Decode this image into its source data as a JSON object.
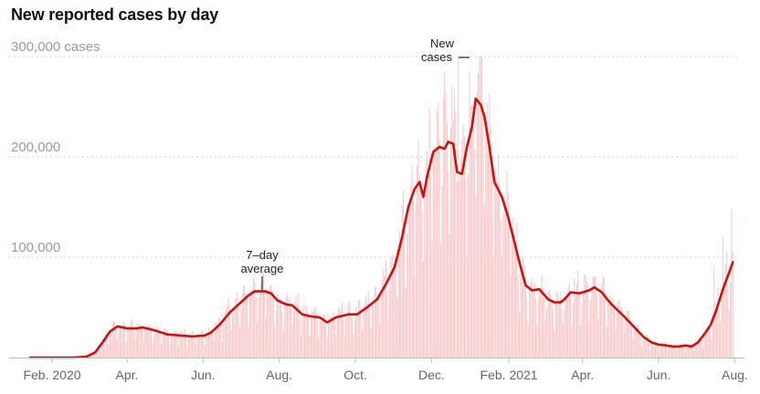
{
  "header": {
    "title": "New reported cases by day"
  },
  "colors": {
    "line": "#cc1111",
    "bar": "#f6c9c9",
    "grid": "#d6d6d6",
    "axis": "#bbbbbb"
  },
  "chart_data": {
    "type": "bar",
    "title": "New reported cases by day",
    "xlabel": "",
    "ylabel": "",
    "x_range_days": [
      0,
      565
    ],
    "ylim": [
      0,
      300000
    ],
    "y_ticks": [
      {
        "value": 300000,
        "label": "300,000 cases"
      },
      {
        "value": 200000,
        "label": "200,000"
      },
      {
        "value": 100000,
        "label": "100,000"
      }
    ],
    "x_ticks": [
      {
        "day": 0,
        "label": "Feb. 2020"
      },
      {
        "day": 60,
        "label": "Apr."
      },
      {
        "day": 121,
        "label": "Jun."
      },
      {
        "day": 182,
        "label": "Aug."
      },
      {
        "day": 243,
        "label": "Oct."
      },
      {
        "day": 304,
        "label": "Dec."
      },
      {
        "day": 366,
        "label": "Feb. 2021"
      },
      {
        "day": 425,
        "label": "Apr."
      },
      {
        "day": 486,
        "label": "Jun."
      },
      {
        "day": 547,
        "label": "Aug."
      }
    ],
    "series": [
      {
        "name": "7-day average",
        "type": "line",
        "points": [
          [
            0,
            0
          ],
          [
            20,
            0
          ],
          [
            35,
            0
          ],
          [
            45,
            800
          ],
          [
            52,
            5000
          ],
          [
            58,
            15000
          ],
          [
            64,
            26000
          ],
          [
            70,
            31000
          ],
          [
            78,
            29000
          ],
          [
            85,
            29000
          ],
          [
            90,
            30000
          ],
          [
            100,
            27000
          ],
          [
            110,
            23000
          ],
          [
            120,
            22000
          ],
          [
            130,
            21000
          ],
          [
            140,
            22000
          ],
          [
            145,
            25000
          ],
          [
            152,
            33000
          ],
          [
            160,
            45000
          ],
          [
            168,
            54000
          ],
          [
            175,
            62000
          ],
          [
            180,
            66000
          ],
          [
            188,
            66000
          ],
          [
            193,
            64000
          ],
          [
            198,
            57000
          ],
          [
            205,
            53000
          ],
          [
            210,
            52000
          ],
          [
            218,
            43000
          ],
          [
            225,
            41000
          ],
          [
            232,
            40000
          ],
          [
            238,
            35000
          ],
          [
            245,
            40000
          ],
          [
            255,
            43000
          ],
          [
            262,
            43000
          ],
          [
            270,
            50000
          ],
          [
            278,
            58000
          ],
          [
            285,
            73000
          ],
          [
            292,
            90000
          ],
          [
            298,
            120000
          ],
          [
            303,
            150000
          ],
          [
            308,
            168000
          ],
          [
            312,
            175000
          ],
          [
            315,
            160000
          ],
          [
            318,
            180000
          ],
          [
            323,
            205000
          ],
          [
            328,
            210000
          ],
          [
            332,
            208000
          ],
          [
            335,
            215000
          ],
          [
            339,
            213000
          ],
          [
            342,
            185000
          ],
          [
            346,
            183000
          ],
          [
            350,
            210000
          ],
          [
            354,
            230000
          ],
          [
            357,
            258000
          ],
          [
            361,
            252000
          ],
          [
            364,
            240000
          ],
          [
            368,
            210000
          ],
          [
            372,
            175000
          ],
          [
            378,
            160000
          ],
          [
            383,
            140000
          ],
          [
            388,
            115000
          ],
          [
            393,
            90000
          ],
          [
            397,
            72000
          ],
          [
            402,
            67000
          ],
          [
            408,
            68000
          ],
          [
            415,
            58000
          ],
          [
            420,
            55000
          ],
          [
            425,
            55000
          ],
          [
            428,
            58000
          ],
          [
            433,
            65000
          ],
          [
            440,
            64000
          ],
          [
            448,
            67000
          ],
          [
            452,
            70000
          ],
          [
            458,
            65000
          ],
          [
            465,
            54000
          ],
          [
            470,
            48000
          ],
          [
            475,
            42000
          ],
          [
            482,
            33000
          ],
          [
            488,
            25000
          ],
          [
            492,
            20000
          ],
          [
            498,
            15000
          ],
          [
            503,
            13000
          ],
          [
            510,
            12000
          ],
          [
            515,
            11000
          ],
          [
            520,
            11000
          ],
          [
            525,
            12000
          ],
          [
            530,
            11000
          ],
          [
            535,
            15000
          ],
          [
            540,
            23000
          ],
          [
            545,
            32000
          ],
          [
            550,
            48000
          ],
          [
            555,
            68000
          ],
          [
            558,
            78000
          ],
          [
            561,
            88000
          ],
          [
            563,
            95000
          ]
        ]
      },
      {
        "name": "New cases",
        "type": "bar",
        "note": "daily values; drawn as thin bars with weekly reporting noise around the 7-day average"
      }
    ],
    "annotations": [
      {
        "label_lines": [
          "7–day",
          "average"
        ],
        "target": "7-day average",
        "day": 183,
        "value": 66000
      },
      {
        "label_lines": [
          "New",
          "cases"
        ],
        "target": "New cases",
        "day": 345,
        "value": 292000
      }
    ]
  }
}
